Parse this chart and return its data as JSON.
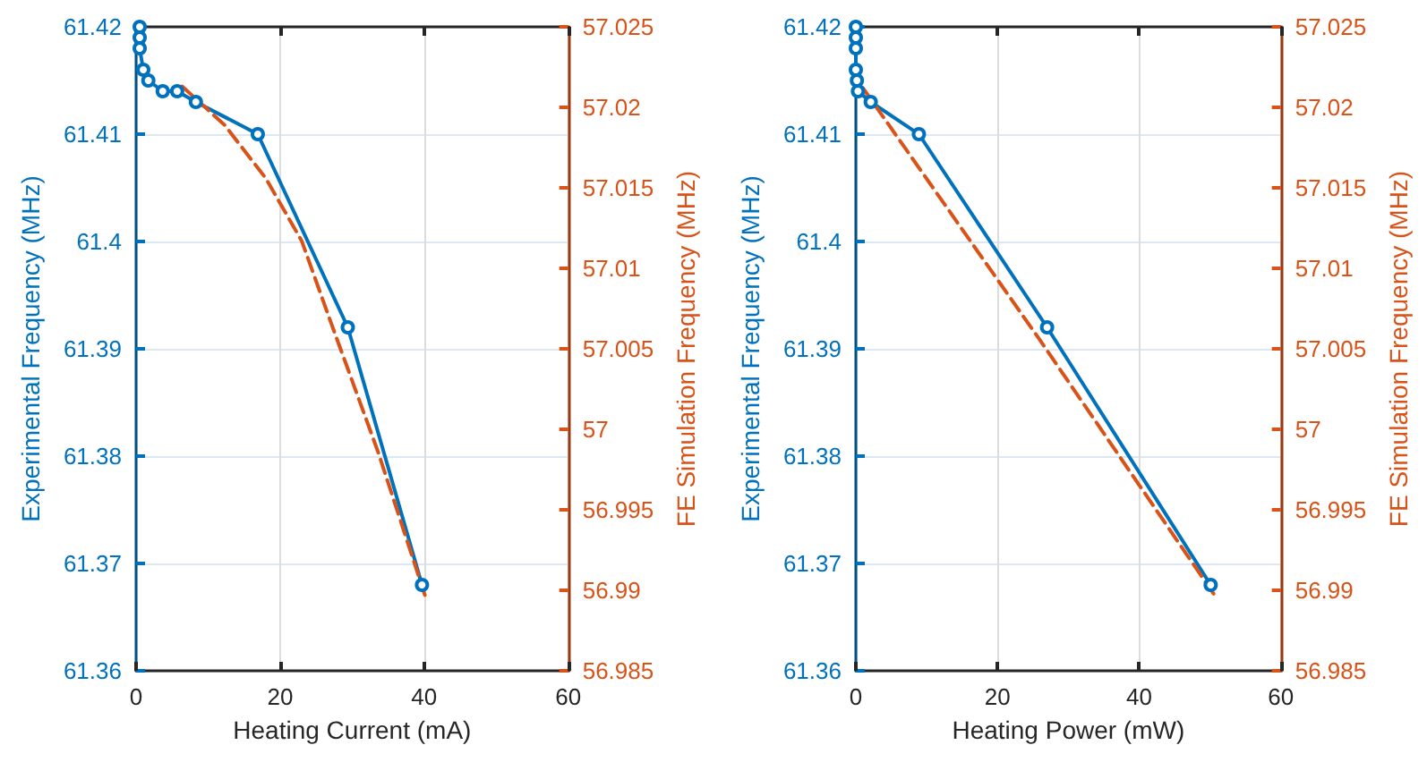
{
  "chart_data": [
    {
      "type": "line",
      "xlabel": "Heating Current (mA)",
      "ylabel": "Experimental Frequency (MHz)",
      "y2label": "FE Simulation Frequency (MHz)",
      "xlim": [
        0,
        60
      ],
      "xticks": [
        0,
        20,
        40,
        60
      ],
      "ylim": [
        61.36,
        61.42
      ],
      "yticks": [
        61.36,
        61.37,
        61.38,
        61.39,
        61.4,
        61.41,
        61.42
      ],
      "y2lim": [
        56.985,
        57.025
      ],
      "y2ticks": [
        56.985,
        56.99,
        56.995,
        57,
        57.005,
        57.01,
        57.015,
        57.02,
        57.025
      ],
      "grid": true,
      "series": [
        {
          "color": "#0072bd",
          "marker": "circle",
          "line_style": "solid",
          "x": [
            0.5,
            0.5,
            0.5,
            1,
            1.7,
            3.7,
            5.7,
            8.3,
            16.9,
            29.4,
            39.7
          ],
          "values": [
            61.42,
            61.419,
            61.418,
            61.416,
            61.415,
            61.414,
            61.414,
            61.413,
            61.41,
            61.392,
            61.368
          ]
        },
        {
          "color": "#d95319",
          "marker": "none",
          "line_style": "dashed",
          "axis": "y2",
          "x": [
            6.4,
            12.3,
            18,
            23,
            27,
            33.6,
            40.1
          ],
          "values": [
            57.0213,
            57.0189,
            57.0156,
            57.0117,
            57.0067,
            56.9986,
            56.9897
          ]
        }
      ]
    },
    {
      "type": "line",
      "xlabel": "Heating Power (mW)",
      "ylabel": "Experimental Frequency (MHz)",
      "y2label": "FE Simulation Frequency (MHz)",
      "xlim": [
        0,
        60
      ],
      "xticks": [
        0,
        20,
        40,
        60
      ],
      "ylim": [
        61.36,
        61.42
      ],
      "yticks": [
        61.36,
        61.37,
        61.38,
        61.39,
        61.4,
        61.41,
        61.42
      ],
      "y2lim": [
        56.985,
        57.025
      ],
      "y2ticks": [
        56.985,
        56.99,
        56.995,
        57,
        57.005,
        57.01,
        57.015,
        57.02,
        57.025
      ],
      "grid": true,
      "series": [
        {
          "color": "#0072bd",
          "marker": "circle",
          "line_style": "solid",
          "x": [
            0,
            0,
            0,
            0,
            0.15,
            0.3,
            2.1,
            8.9,
            27,
            50.1
          ],
          "values": [
            61.42,
            61.419,
            61.418,
            61.416,
            61.415,
            61.414,
            61.413,
            61.41,
            61.392,
            61.368
          ]
        },
        {
          "color": "#d95319",
          "marker": "none",
          "line_style": "dashed",
          "axis": "y2",
          "x": [
            1,
            25.9,
            50.8
          ],
          "values": [
            57.0212,
            57.0056,
            56.9896
          ]
        }
      ]
    }
  ]
}
